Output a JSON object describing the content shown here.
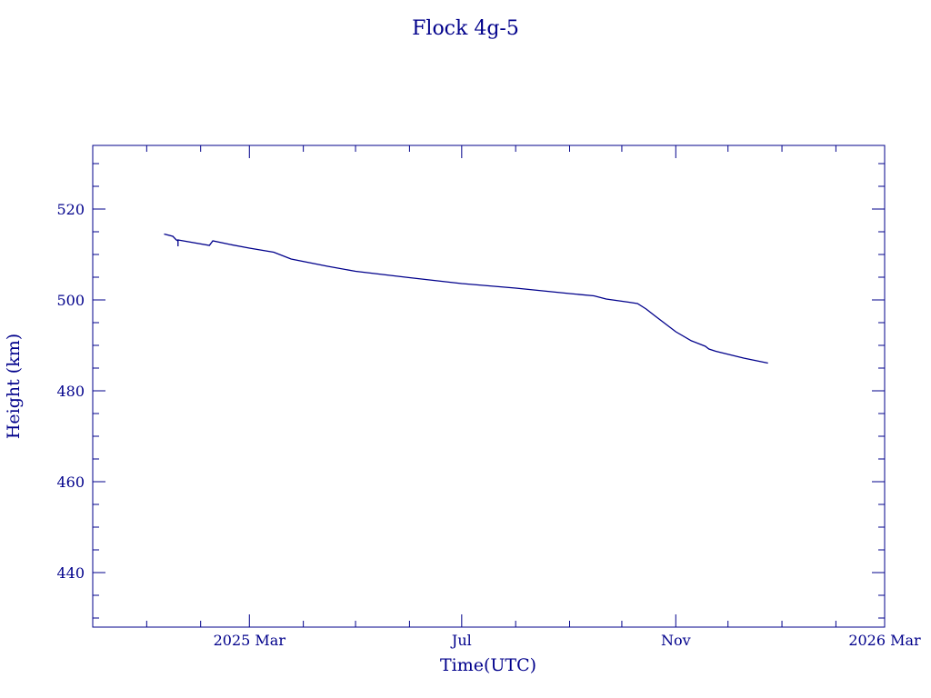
{
  "chart_data": {
    "type": "line",
    "title": "Flock 4g-5",
    "xlabel": "Time(UTC)",
    "ylabel": "Height (km)",
    "x_is_date": true,
    "xlim": [
      "2024-12-01",
      "2026-03-01"
    ],
    "ylim": [
      428,
      534
    ],
    "x_ticks": [
      {
        "date": "2025-03-01",
        "label": "2025 Mar"
      },
      {
        "date": "2025-07-01",
        "label": "Jul"
      },
      {
        "date": "2025-11-01",
        "label": "Nov"
      },
      {
        "date": "2026-03-01",
        "label": "2026 Mar"
      }
    ],
    "x_minor_ticks": [
      "2025-01-01",
      "2025-02-01",
      "2025-04-01",
      "2025-05-01",
      "2025-06-01",
      "2025-08-01",
      "2025-09-01",
      "2025-10-01",
      "2025-12-01",
      "2026-01-01",
      "2026-02-01"
    ],
    "y_ticks": [
      440,
      460,
      480,
      500,
      520
    ],
    "y_minor_step": 5,
    "grid": false,
    "legend": "none",
    "series": [
      {
        "color": "#00008b",
        "points": [
          [
            "2025-01-11",
            514.5
          ],
          [
            "2025-01-16",
            514.0
          ],
          [
            "2025-01-18",
            513.2
          ],
          [
            "2025-01-19",
            513.0
          ],
          [
            "2025-01-19",
            511.8
          ],
          [
            "2025-01-19",
            513.2
          ],
          [
            "2025-02-06",
            512.0
          ],
          [
            "2025-02-08",
            513.0
          ],
          [
            "2025-02-18",
            512.2
          ],
          [
            "2025-03-01",
            511.4
          ],
          [
            "2025-03-15",
            510.5
          ],
          [
            "2025-03-25",
            509.0
          ],
          [
            "2025-04-15",
            507.4
          ],
          [
            "2025-05-01",
            506.3
          ],
          [
            "2025-06-01",
            504.9
          ],
          [
            "2025-07-01",
            503.6
          ],
          [
            "2025-08-01",
            502.6
          ],
          [
            "2025-09-01",
            501.4
          ],
          [
            "2025-09-15",
            500.9
          ],
          [
            "2025-09-22",
            500.2
          ],
          [
            "2025-10-05",
            499.5
          ],
          [
            "2025-10-10",
            499.2
          ],
          [
            "2025-10-15",
            498.0
          ],
          [
            "2025-10-20",
            496.5
          ],
          [
            "2025-11-01",
            493.0
          ],
          [
            "2025-11-10",
            491.0
          ],
          [
            "2025-11-18",
            489.8
          ],
          [
            "2025-11-20",
            489.2
          ],
          [
            "2025-11-24",
            488.7
          ],
          [
            "2025-12-10",
            487.2
          ],
          [
            "2025-12-24",
            486.1
          ]
        ]
      }
    ]
  }
}
